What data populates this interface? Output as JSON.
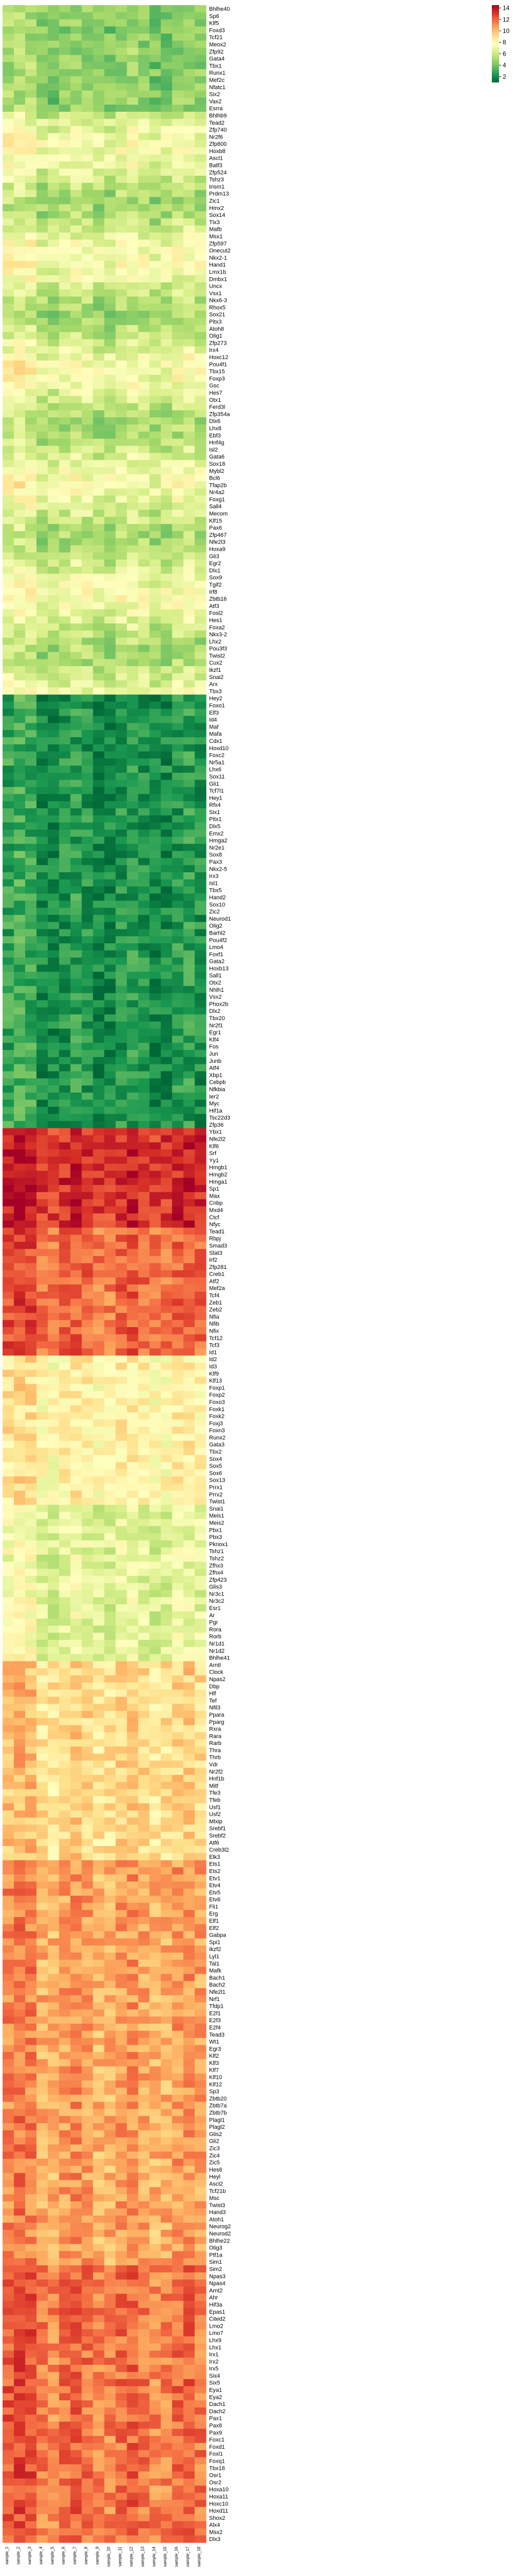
{
  "chart_data": {
    "type": "heatmap",
    "title": "",
    "xlabel": "",
    "ylabel": "",
    "colormap": "RdYlGn_r",
    "colors": [
      "#006837",
      "#1a9850",
      "#66bd63",
      "#a6d96a",
      "#d9ef8b",
      "#ffffbf",
      "#fee08b",
      "#fdae61",
      "#f46d43",
      "#d73027",
      "#a50026"
    ],
    "vmin": 1,
    "vmax": 14.5,
    "colorbar_ticks": [
      2,
      4,
      6,
      8,
      10,
      12,
      14
    ],
    "columns": [
      "sample_1",
      "sample_2",
      "sample_3",
      "sample_4",
      "sample_5",
      "sample_6",
      "sample_7",
      "sample_8",
      "sample_9",
      "sample_10",
      "sample_11",
      "sample_12",
      "sample_13",
      "sample_14",
      "sample_15",
      "sample_16",
      "sample_17",
      "sample_18"
    ],
    "row_labels": [
      "Bhlhe40",
      "Sp6",
      "Klf5",
      "Foxd3",
      "Tcf21",
      "Meox2",
      "Zfp92",
      "Gata4",
      "Tbx1",
      "Runx1",
      "Mef2c",
      "Nfatc1",
      "Six2",
      "Vax2",
      "Esrra",
      "Bhlhb9",
      "Tead2",
      "Zfp740",
      "Nr2f6",
      "Zfp800",
      "Hoxb8",
      "Ascl1",
      "Batf3",
      "Zfp524",
      "Tshz3",
      "Insm1",
      "Prdm13",
      "Zic1",
      "Hmx2",
      "Sox14",
      "Tlx3",
      "Mafb",
      "Msx1",
      "Zfp597",
      "Onecut2",
      "Nkx2-1",
      "Hand1",
      "Lmx1b",
      "Dmbx1",
      "Uncx",
      "Vsx1",
      "Nkx6-3",
      "Rhox5",
      "Sox21",
      "Pitx3",
      "Atoh8",
      "Olig1",
      "Zfp273",
      "Irx4",
      "Hoxc12",
      "Pou4f1",
      "Tbx15",
      "Foxp3",
      "Gsc",
      "Hes7",
      "Otx1",
      "Ferd3l",
      "Zfp354a",
      "Dlx6",
      "Lhx8",
      "Ebf3",
      "Hnf4g",
      "Isl2",
      "Gata6",
      "Sox18",
      "Mybl2",
      "Bcl6",
      "Tfap2b",
      "Nr4a2",
      "Foxg1",
      "Sall4",
      "Mecom",
      "Klf15",
      "Pax6",
      "Zfp467",
      "Nfe2l3",
      "Hoxa9",
      "Gli3",
      "Egr2",
      "Dlx1",
      "Sox9",
      "Tgif2",
      "Irf8",
      "Zbtb16",
      "Atf3",
      "Fosl2",
      "Hes1",
      "Foxa2",
      "Nkx3-2",
      "Lhx2",
      "Pou3f3",
      "Twist2",
      "Cux2",
      "Ikzf1",
      "Snai2",
      "Arx",
      "Tbx3",
      "Hey2",
      "Foxo1",
      "Elf3",
      "Id4",
      "Maf",
      "Mafa",
      "Cdx1",
      "Hoxd10",
      "Foxc2",
      "Nr5a1",
      "Lhx6",
      "Sox11",
      "Gli1",
      "Tcf7l1",
      "Hey1",
      "Rfx4",
      "Six1",
      "Pitx1",
      "Dlx5",
      "Emx2",
      "Hmga2",
      "Nr2e1",
      "Sox8",
      "Pax3",
      "Nkx2-5",
      "Irx3",
      "Isl1",
      "Tbx5",
      "Hand2",
      "Sox10",
      "Zic2",
      "Neurod1",
      "Olig2",
      "Barhl2",
      "Pou4f2",
      "Lmo4",
      "Foxf1",
      "Gata2",
      "Hoxb13",
      "Sall1",
      "Otx2",
      "Nhlh1",
      "Vsx2",
      "Phox2b",
      "Dlx2",
      "Tbx20",
      "Nr2f1",
      "Egr1",
      "Klf4",
      "Fos",
      "Jun",
      "Junb",
      "Atf4",
      "Xbp1",
      "Cebpb",
      "Nfkbia",
      "Ier2",
      "Myc",
      "Hif1a",
      "Tsc22d3",
      "Zfp36",
      "Ybx1",
      "Nfe2l2",
      "Klf6",
      "Srf",
      "Yy1",
      "Hmgb1",
      "Hmgb2",
      "Hmga1",
      "Sp1",
      "Max",
      "Cnbp",
      "Mxd4",
      "Ctcf",
      "Nfyc",
      "Tead1",
      "Rbpj",
      "Smad3",
      "Stat3",
      "Irf2",
      "Zfp281",
      "Creb1",
      "Atf2",
      "Mef2a",
      "Tcf4",
      "Zeb1",
      "Zeb2",
      "Nfia",
      "Nfib",
      "Nfix",
      "Tcf12",
      "Tcf3",
      "Id1",
      "Id2",
      "Id3",
      "Klf9",
      "Klf13",
      "Foxp1",
      "Foxp2",
      "Foxo3",
      "Foxk1",
      "Foxk2",
      "Foxj3",
      "Foxn3",
      "Runx2",
      "Gata3",
      "Tbx2",
      "Sox4",
      "Sox5",
      "Sox6",
      "Sox13",
      "Prrx1",
      "Prrx2",
      "Twist1",
      "Snai1",
      "Meis1",
      "Meis2",
      "Pbx1",
      "Pbx3",
      "Pknox1",
      "Tshz1",
      "Tshz2",
      "Zfhx3",
      "Zfhx4",
      "Zfp423",
      "Glis3",
      "Nr3c1",
      "Nr3c2",
      "Esr1",
      "Ar",
      "Pgr",
      "Rora",
      "Rorb",
      "Nr1d1",
      "Nr1d2",
      "Bhlhe41",
      "Arntl",
      "Clock",
      "Npas2",
      "Dbp",
      "Hlf",
      "Tef",
      "Nfil3",
      "Ppara",
      "Pparg",
      "Rxra",
      "Rara",
      "Rarb",
      "Thra",
      "Thrb",
      "Vdr",
      "Nr2f2",
      "Hnf1b",
      "Mitf",
      "Tfe3",
      "Tfeb",
      "Usf1",
      "Usf2",
      "Mlxip",
      "Srebf1",
      "Srebf2",
      "Atf6",
      "Creb3l2",
      "Elk3",
      "Ets1",
      "Ets2",
      "Etv1",
      "Etv4",
      "Etv5",
      "Etv6",
      "Fli1",
      "Erg",
      "Elf1",
      "Elf2",
      "Gabpa",
      "Spi1",
      "Ikzf2",
      "Lyl1",
      "Tal1",
      "Mafk",
      "Bach1",
      "Bach2",
      "Nfe2l1",
      "Nrf1",
      "Tfdp1",
      "E2f1",
      "E2f3",
      "E2f4",
      "Tead3",
      "Wt1",
      "Egr3",
      "Klf2",
      "Klf3",
      "Klf7",
      "Klf10",
      "Klf12",
      "Sp3",
      "Zbtb20",
      "Zbtb7a",
      "Zbtb7b",
      "Plagl1",
      "Plagl2",
      "Glis2",
      "Gli2",
      "Zic3",
      "Zic4",
      "Zic5",
      "Hes6",
      "Heyl",
      "Ascl2",
      "Tcf21b",
      "Msc",
      "Twist3",
      "Hand3",
      "Atoh1",
      "Neurog2",
      "Neurod2",
      "Bhlhe22",
      "Olig3",
      "Ptf1a",
      "Sim1",
      "Sim2",
      "Npas3",
      "Npas4",
      "Arnt2",
      "Ahr",
      "Hif3a",
      "Epas1",
      "Cited2",
      "Lmo2",
      "Lmo7",
      "Lhx9",
      "Lhx1",
      "Irx1",
      "Irx2",
      "Irx5",
      "Six4",
      "Six5",
      "Eya1",
      "Eya2",
      "Dach1",
      "Dach2",
      "Pax1",
      "Pax8",
      "Pax9",
      "Foxc1",
      "Foxd1",
      "Foxl1",
      "Foxq1",
      "Tbx18",
      "Osr1",
      "Osr2",
      "Hoxa10",
      "Hoxa11",
      "Hoxc10",
      "Hoxd11",
      "Shox2",
      "Alx4",
      "Msx2",
      "Dlx3"
    ]
  }
}
